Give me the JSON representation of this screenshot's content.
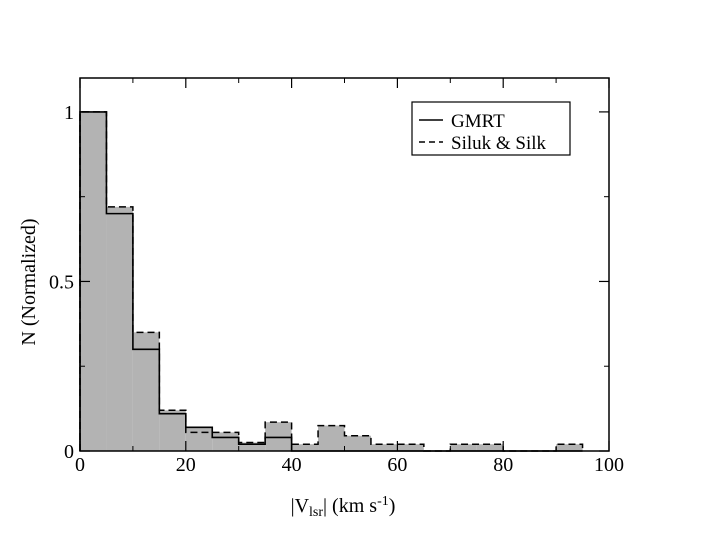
{
  "chart_data": {
    "type": "bar",
    "subtype": "histogram",
    "xlabel": {
      "prefix": "|V",
      "sub": "lsr",
      "mid": "| (km s",
      "sup": "-1",
      "suffix": ")"
    },
    "ylabel": "N (Normalized)",
    "xlim": [
      0,
      100
    ],
    "ylim": [
      0,
      1.1
    ],
    "x_ticks": [
      0,
      20,
      40,
      60,
      80,
      100
    ],
    "y_ticks": [
      0,
      0.5,
      1
    ],
    "x_tick_labels": [
      "0",
      "20",
      "40",
      "60",
      "80",
      "100"
    ],
    "y_tick_labels": [
      "0",
      "0.5",
      "1"
    ],
    "bin_edges": [
      0,
      5,
      10,
      15,
      20,
      25,
      30,
      35,
      40,
      45,
      50,
      55,
      60,
      65,
      70,
      75,
      80,
      85,
      90,
      95
    ],
    "series": [
      {
        "name": "GMRT",
        "style": "solid",
        "values": [
          1.0,
          0.7,
          0.3,
          0.11,
          0.07,
          0.04,
          0.02,
          0.04,
          0.0,
          0.0,
          0.0,
          0.0,
          0.0,
          0.0,
          0.0,
          0.0,
          0.0,
          0.0,
          0.0
        ]
      },
      {
        "name": "Siluk & Silk",
        "style": "dashed",
        "values": [
          1.0,
          0.72,
          0.35,
          0.12,
          0.055,
          0.055,
          0.025,
          0.085,
          0.02,
          0.075,
          0.045,
          0.02,
          0.02,
          0.0,
          0.02,
          0.02,
          0.0,
          0.0,
          0.02
        ]
      }
    ],
    "fill_color": "#b3b3b3",
    "legend_position": "top-right",
    "grid": false
  }
}
